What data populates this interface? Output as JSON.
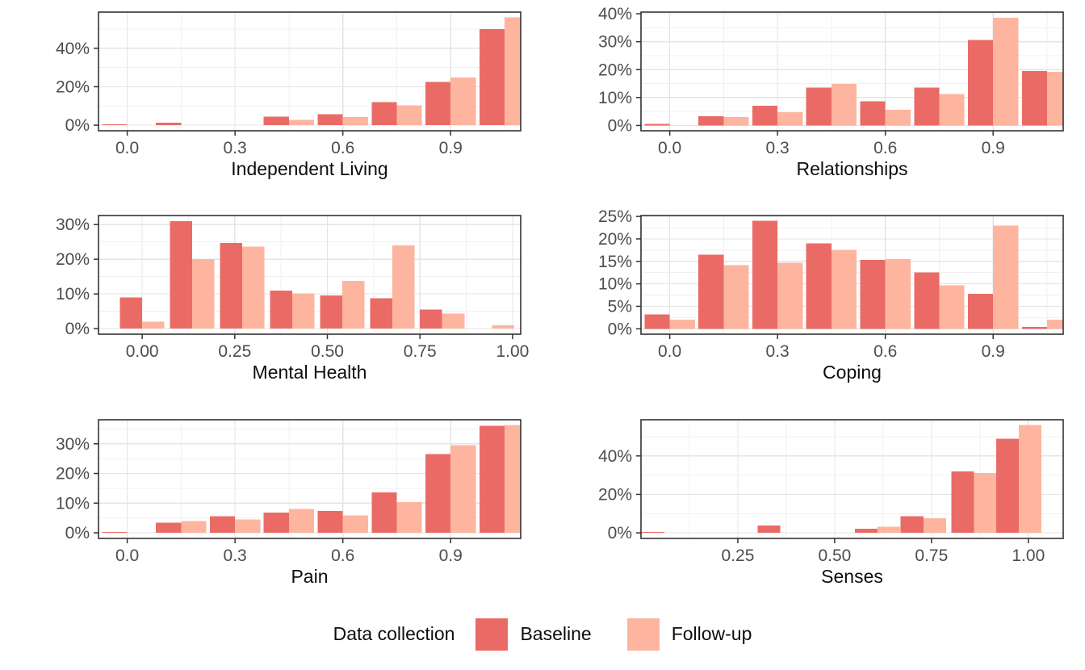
{
  "legend": {
    "title": "Data collection",
    "items": [
      {
        "key": "baseline",
        "label": "Baseline",
        "color": "#EA6B66"
      },
      {
        "key": "followup",
        "label": "Follow-up",
        "color": "#FDB5A0"
      }
    ]
  },
  "colors": {
    "baseline_fill": "#EA6B66",
    "followup_fill": "#FDB5A0",
    "grid_major": "#E4E4E4",
    "grid_minor": "#F1F1F1",
    "panel_border": "#333333",
    "tick_mark": "#333333",
    "tick_label": "#4D4D4D",
    "axis_title": "#0D0D0D",
    "panel_bg": "#FFFFFF"
  },
  "chart_data": [
    {
      "type": "bar",
      "title": "Independent Living",
      "slug": "independent-living",
      "legend_series": [
        "Baseline",
        "Follow-up"
      ],
      "xlim": [
        -0.08,
        1.095
      ],
      "ylim": [
        -2.9,
        58.8
      ],
      "bar_halfwidth": 0.07,
      "xticks": [
        {
          "v": 0.0,
          "label": "0.0"
        },
        {
          "v": 0.3,
          "label": "0.3"
        },
        {
          "v": 0.6,
          "label": "0.6"
        },
        {
          "v": 0.9,
          "label": "0.9"
        }
      ],
      "yticks": [
        {
          "v": 0,
          "label": "0%"
        },
        {
          "v": 20,
          "label": "20%"
        },
        {
          "v": 40,
          "label": "40%"
        }
      ],
      "groups": [
        {
          "x": 0.0,
          "baseline": 0.4,
          "followup": 0
        },
        {
          "x": 0.15,
          "baseline": 1.3,
          "followup": 0
        },
        {
          "x": 0.45,
          "baseline": 4.5,
          "followup": 2.7
        },
        {
          "x": 0.6,
          "baseline": 5.6,
          "followup": 4.2
        },
        {
          "x": 0.75,
          "baseline": 12.0,
          "followup": 10.3
        },
        {
          "x": 0.9,
          "baseline": 22.5,
          "followup": 24.7
        },
        {
          "x": 1.05,
          "baseline": 50.0,
          "followup": 56.0
        }
      ]
    },
    {
      "type": "bar",
      "title": "Relationships",
      "slug": "relationships",
      "legend_series": [
        "Baseline",
        "Follow-up"
      ],
      "xlim": [
        -0.08,
        1.095
      ],
      "ylim": [
        -1.9,
        40.6
      ],
      "bar_halfwidth": 0.07,
      "xticks": [
        {
          "v": 0.0,
          "label": "0.0"
        },
        {
          "v": 0.3,
          "label": "0.3"
        },
        {
          "v": 0.6,
          "label": "0.6"
        },
        {
          "v": 0.9,
          "label": "0.9"
        }
      ],
      "yticks": [
        {
          "v": 0,
          "label": "0%"
        },
        {
          "v": 10,
          "label": "10%"
        },
        {
          "v": 20,
          "label": "20%"
        },
        {
          "v": 30,
          "label": "30%"
        },
        {
          "v": 40,
          "label": "40%"
        }
      ],
      "groups": [
        {
          "x": 0.0,
          "baseline": 0.6,
          "followup": 0
        },
        {
          "x": 0.15,
          "baseline": 3.3,
          "followup": 3.0
        },
        {
          "x": 0.3,
          "baseline": 7.0,
          "followup": 4.7
        },
        {
          "x": 0.45,
          "baseline": 13.6,
          "followup": 14.8
        },
        {
          "x": 0.6,
          "baseline": 8.6,
          "followup": 5.6
        },
        {
          "x": 0.75,
          "baseline": 13.6,
          "followup": 11.2
        },
        {
          "x": 0.9,
          "baseline": 30.6,
          "followup": 38.6
        },
        {
          "x": 1.05,
          "baseline": 19.5,
          "followup": 19.2
        }
      ]
    },
    {
      "type": "bar",
      "title": "Mental Health",
      "slug": "mental-health",
      "legend_series": [
        "Baseline",
        "Follow-up"
      ],
      "xlim": [
        -0.118,
        1.022
      ],
      "ylim": [
        -1.6,
        32.6
      ],
      "bar_halfwidth": 0.06,
      "xticks": [
        {
          "v": 0.0,
          "label": "0.00"
        },
        {
          "v": 0.25,
          "label": "0.25"
        },
        {
          "v": 0.5,
          "label": "0.50"
        },
        {
          "v": 0.75,
          "label": "0.75"
        },
        {
          "v": 1.0,
          "label": "1.00"
        }
      ],
      "yticks": [
        {
          "v": 0,
          "label": "0%"
        },
        {
          "v": 10,
          "label": "10%"
        },
        {
          "v": 20,
          "label": "20%"
        },
        {
          "v": 30,
          "label": "30%"
        }
      ],
      "groups": [
        {
          "x": 0.0,
          "baseline": 9.0,
          "followup": 2.0
        },
        {
          "x": 0.135,
          "baseline": 31.0,
          "followup": 20.0
        },
        {
          "x": 0.27,
          "baseline": 24.7,
          "followup": 23.6
        },
        {
          "x": 0.405,
          "baseline": 11.0,
          "followup": 10.2
        },
        {
          "x": 0.54,
          "baseline": 9.6,
          "followup": 13.8
        },
        {
          "x": 0.675,
          "baseline": 8.7,
          "followup": 24.0
        },
        {
          "x": 0.81,
          "baseline": 5.5,
          "followup": 4.3
        },
        {
          "x": 0.945,
          "baseline": 0,
          "followup": 1.0
        }
      ]
    },
    {
      "type": "bar",
      "title": "Coping",
      "slug": "coping",
      "legend_series": [
        "Baseline",
        "Follow-up"
      ],
      "xlim": [
        -0.08,
        1.095
      ],
      "ylim": [
        -1.2,
        25.2
      ],
      "bar_halfwidth": 0.07,
      "xticks": [
        {
          "v": 0.0,
          "label": "0.0"
        },
        {
          "v": 0.3,
          "label": "0.3"
        },
        {
          "v": 0.6,
          "label": "0.6"
        },
        {
          "v": 0.9,
          "label": "0.9"
        }
      ],
      "yticks": [
        {
          "v": 0,
          "label": "0%"
        },
        {
          "v": 5,
          "label": "5%"
        },
        {
          "v": 10,
          "label": "10%"
        },
        {
          "v": 15,
          "label": "15%"
        },
        {
          "v": 20,
          "label": "20%"
        },
        {
          "v": 25,
          "label": "25%"
        }
      ],
      "groups": [
        {
          "x": 0.0,
          "baseline": 3.2,
          "followup": 2.0
        },
        {
          "x": 0.15,
          "baseline": 16.5,
          "followup": 14.2
        },
        {
          "x": 0.3,
          "baseline": 24.0,
          "followup": 14.7
        },
        {
          "x": 0.45,
          "baseline": 19.0,
          "followup": 17.6
        },
        {
          "x": 0.6,
          "baseline": 15.3,
          "followup": 15.5
        },
        {
          "x": 0.75,
          "baseline": 12.5,
          "followup": 9.7
        },
        {
          "x": 0.9,
          "baseline": 7.8,
          "followup": 23.0
        },
        {
          "x": 1.05,
          "baseline": 0.4,
          "followup": 2.0
        }
      ]
    },
    {
      "type": "bar",
      "title": "Pain",
      "slug": "pain",
      "legend_series": [
        "Baseline",
        "Follow-up"
      ],
      "xlim": [
        -0.08,
        1.095
      ],
      "ylim": [
        -1.9,
        38.1
      ],
      "bar_halfwidth": 0.07,
      "xticks": [
        {
          "v": 0.0,
          "label": "0.0"
        },
        {
          "v": 0.3,
          "label": "0.3"
        },
        {
          "v": 0.6,
          "label": "0.6"
        },
        {
          "v": 0.9,
          "label": "0.9"
        }
      ],
      "yticks": [
        {
          "v": 0,
          "label": "0%"
        },
        {
          "v": 10,
          "label": "10%"
        },
        {
          "v": 20,
          "label": "20%"
        },
        {
          "v": 30,
          "label": "30%"
        }
      ],
      "groups": [
        {
          "x": 0.0,
          "baseline": 0.3,
          "followup": 0
        },
        {
          "x": 0.15,
          "baseline": 3.4,
          "followup": 4.0
        },
        {
          "x": 0.3,
          "baseline": 5.6,
          "followup": 4.5
        },
        {
          "x": 0.45,
          "baseline": 6.8,
          "followup": 8.1
        },
        {
          "x": 0.6,
          "baseline": 7.3,
          "followup": 5.9
        },
        {
          "x": 0.75,
          "baseline": 13.6,
          "followup": 10.3
        },
        {
          "x": 0.9,
          "baseline": 26.5,
          "followup": 29.5
        },
        {
          "x": 1.05,
          "baseline": 36.0,
          "followup": 36.3
        }
      ]
    },
    {
      "type": "bar",
      "title": "Senses",
      "slug": "senses",
      "legend_series": [
        "Baseline",
        "Follow-up"
      ],
      "xlim": [
        0.0,
        1.09
      ],
      "ylim": [
        -2.9,
        58.8
      ],
      "bar_halfwidth": 0.0585,
      "xticks": [
        {
          "v": 0.25,
          "label": "0.25"
        },
        {
          "v": 0.5,
          "label": "0.50"
        },
        {
          "v": 0.75,
          "label": "0.75"
        },
        {
          "v": 1.0,
          "label": "1.00"
        }
      ],
      "yticks": [
        {
          "v": 0,
          "label": "0%"
        },
        {
          "v": 20,
          "label": "20%"
        },
        {
          "v": 40,
          "label": "40%"
        }
      ],
      "groups": [
        {
          "x": 0.06,
          "baseline": 0.4,
          "followup": 0
        },
        {
          "x": 0.36,
          "baseline": 3.8,
          "followup": 0
        },
        {
          "x": 0.611,
          "baseline": 2.2,
          "followup": 3.2
        },
        {
          "x": 0.729,
          "baseline": 8.7,
          "followup": 7.5
        },
        {
          "x": 0.86,
          "baseline": 32.0,
          "followup": 31.0
        },
        {
          "x": 0.975,
          "baseline": 49.0,
          "followup": 56.0
        }
      ]
    }
  ]
}
